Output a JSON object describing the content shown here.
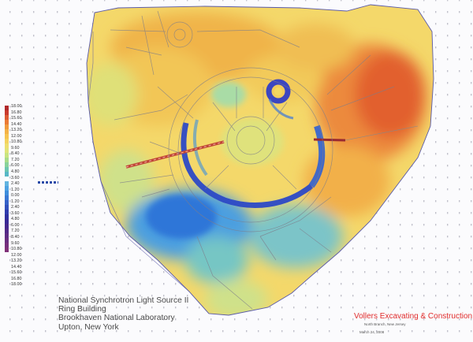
{
  "legend": {
    "values": [
      "18.00",
      "16.80",
      "15.60",
      "14.40",
      "13.20",
      "12.00",
      "10.80",
      "9.60",
      "8.40",
      "7.20",
      "6.00",
      "4.80",
      "3.60",
      "2.40",
      "1.20",
      "0.00",
      "1.20",
      "2.40",
      "3.60",
      "4.80",
      "6.00",
      "7.20",
      "8.40",
      "9.60",
      "10.80",
      "12.00",
      "13.20",
      "14.40",
      "15.60",
      "16.80",
      "18.00"
    ],
    "colors": [
      "#b0282a",
      "#c83a2e",
      "#dc5a32",
      "#ea7a36",
      "#f09a3c",
      "#f4b246",
      "#f6c450",
      "#f4d25e",
      "#eede6e",
      "#e0e478",
      "#c8e480",
      "#a8dc8a",
      "#88d29a",
      "#6cc6b0",
      "#58b8c6",
      "#ffffff",
      "#62b4e0",
      "#4ea2e2",
      "#3e8edc",
      "#3a78d4",
      "#3662c8",
      "#3250bc",
      "#303cae",
      "#3030a0",
      "#3a2a96",
      "#46288e",
      "#522a88",
      "#5e2c84",
      "#6a2e80",
      "#762f7c",
      "#803078"
    ]
  },
  "title": {
    "line1": "National Synchrotron Light Source II",
    "line2": "Ring Building",
    "line3": "Brookhaven National Laboratory",
    "line4": "Upton, New York"
  },
  "company": {
    "name": "Vollers Excavating & Construction",
    "location": "North Branch, New Jersey",
    "date": "March 24, 2008"
  }
}
